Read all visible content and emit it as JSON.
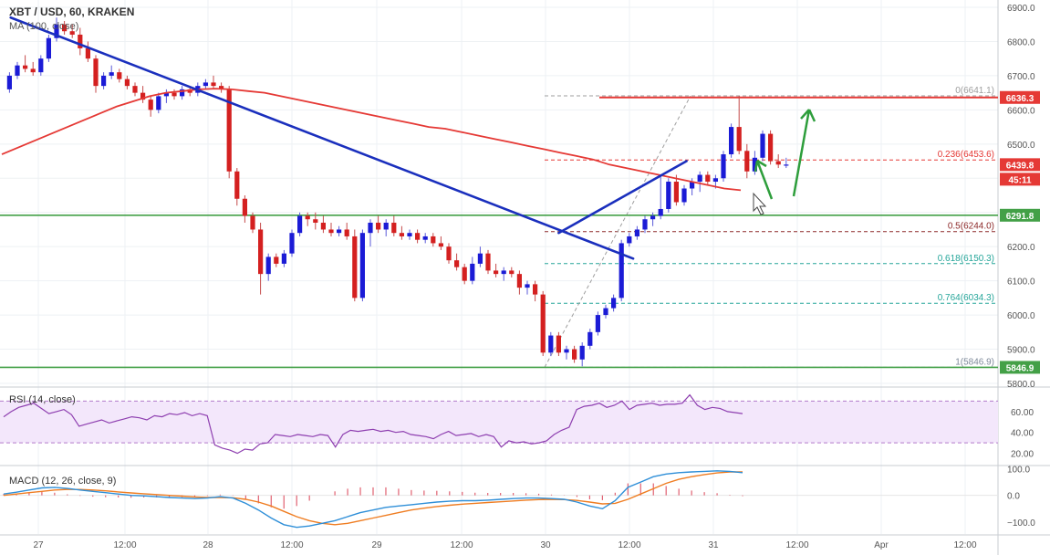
{
  "chart_data": {
    "type": "candlestick",
    "title": "XBT / USD, 60, KRAKEN",
    "ma_label": "MA (100, close)",
    "price_axis": {
      "ticks": [
        "6900.0",
        "6800.0",
        "6700.0",
        "6600.0",
        "6500.0",
        "6400.0",
        "6300.0",
        "6200.0",
        "6100.0",
        "6000.0",
        "5900.0",
        "5800.0"
      ],
      "range": [
        5800,
        6900
      ]
    },
    "time_axis": {
      "labels": [
        "27",
        "12:00",
        "28",
        "12:00",
        "29",
        "12:00",
        "30",
        "12:00",
        "31",
        "12:00",
        "Apr",
        "12:00"
      ]
    },
    "candles": [
      {
        "o": 6660,
        "h": 6710,
        "l": 6650,
        "c": 6700
      },
      {
        "o": 6700,
        "h": 6740,
        "l": 6690,
        "c": 6730
      },
      {
        "o": 6730,
        "h": 6760,
        "l": 6710,
        "c": 6720
      },
      {
        "o": 6720,
        "h": 6740,
        "l": 6700,
        "c": 6710
      },
      {
        "o": 6710,
        "h": 6760,
        "l": 6700,
        "c": 6750
      },
      {
        "o": 6750,
        "h": 6820,
        "l": 6740,
        "c": 6810
      },
      {
        "o": 6810,
        "h": 6870,
        "l": 6800,
        "c": 6850
      },
      {
        "o": 6850,
        "h": 6860,
        "l": 6820,
        "c": 6830
      },
      {
        "o": 6830,
        "h": 6850,
        "l": 6810,
        "c": 6820
      },
      {
        "o": 6820,
        "h": 6840,
        "l": 6760,
        "c": 6780
      },
      {
        "o": 6780,
        "h": 6800,
        "l": 6740,
        "c": 6750
      },
      {
        "o": 6750,
        "h": 6760,
        "l": 6650,
        "c": 6670
      },
      {
        "o": 6670,
        "h": 6710,
        "l": 6660,
        "c": 6700
      },
      {
        "o": 6700,
        "h": 6730,
        "l": 6690,
        "c": 6710
      },
      {
        "o": 6710,
        "h": 6720,
        "l": 6680,
        "c": 6690
      },
      {
        "o": 6690,
        "h": 6700,
        "l": 6660,
        "c": 6670
      },
      {
        "o": 6670,
        "h": 6680,
        "l": 6640,
        "c": 6650
      },
      {
        "o": 6650,
        "h": 6670,
        "l": 6620,
        "c": 6630
      },
      {
        "o": 6630,
        "h": 6640,
        "l": 6580,
        "c": 6600
      },
      {
        "o": 6600,
        "h": 6650,
        "l": 6590,
        "c": 6640
      },
      {
        "o": 6640,
        "h": 6660,
        "l": 6620,
        "c": 6650
      },
      {
        "o": 6650,
        "h": 6660,
        "l": 6630,
        "c": 6640
      },
      {
        "o": 6640,
        "h": 6670,
        "l": 6630,
        "c": 6660
      },
      {
        "o": 6660,
        "h": 6670,
        "l": 6640,
        "c": 6650
      },
      {
        "o": 6650,
        "h": 6680,
        "l": 6640,
        "c": 6670
      },
      {
        "o": 6670,
        "h": 6690,
        "l": 6660,
        "c": 6680
      },
      {
        "o": 6680,
        "h": 6700,
        "l": 6660,
        "c": 6670
      },
      {
        "o": 6670,
        "h": 6680,
        "l": 6650,
        "c": 6660
      },
      {
        "o": 6660,
        "h": 6670,
        "l": 6400,
        "c": 6420
      },
      {
        "o": 6420,
        "h": 6430,
        "l": 6320,
        "c": 6340
      },
      {
        "o": 6340,
        "h": 6350,
        "l": 6270,
        "c": 6290
      },
      {
        "o": 6290,
        "h": 6300,
        "l": 6240,
        "c": 6250
      },
      {
        "o": 6250,
        "h": 6270,
        "l": 6060,
        "c": 6120
      },
      {
        "o": 6120,
        "h": 6180,
        "l": 6100,
        "c": 6170
      },
      {
        "o": 6170,
        "h": 6180,
        "l": 6140,
        "c": 6150
      },
      {
        "o": 6150,
        "h": 6190,
        "l": 6140,
        "c": 6180
      },
      {
        "o": 6180,
        "h": 6250,
        "l": 6170,
        "c": 6240
      },
      {
        "o": 6240,
        "h": 6300,
        "l": 6230,
        "c": 6290
      },
      {
        "o": 6290,
        "h": 6300,
        "l": 6260,
        "c": 6280
      },
      {
        "o": 6280,
        "h": 6300,
        "l": 6250,
        "c": 6270
      },
      {
        "o": 6270,
        "h": 6290,
        "l": 6240,
        "c": 6250
      },
      {
        "o": 6250,
        "h": 6270,
        "l": 6230,
        "c": 6240
      },
      {
        "o": 6240,
        "h": 6260,
        "l": 6230,
        "c": 6250
      },
      {
        "o": 6250,
        "h": 6270,
        "l": 6220,
        "c": 6230
      },
      {
        "o": 6230,
        "h": 6250,
        "l": 6040,
        "c": 6050
      },
      {
        "o": 6050,
        "h": 6250,
        "l": 6040,
        "c": 6240
      },
      {
        "o": 6240,
        "h": 6280,
        "l": 6200,
        "c": 6270
      },
      {
        "o": 6270,
        "h": 6290,
        "l": 6240,
        "c": 6250
      },
      {
        "o": 6250,
        "h": 6280,
        "l": 6230,
        "c": 6270
      },
      {
        "o": 6270,
        "h": 6290,
        "l": 6230,
        "c": 6240
      },
      {
        "o": 6240,
        "h": 6260,
        "l": 6220,
        "c": 6230
      },
      {
        "o": 6230,
        "h": 6250,
        "l": 6220,
        "c": 6240
      },
      {
        "o": 6240,
        "h": 6250,
        "l": 6210,
        "c": 6220
      },
      {
        "o": 6220,
        "h": 6240,
        "l": 6210,
        "c": 6230
      },
      {
        "o": 6230,
        "h": 6240,
        "l": 6200,
        "c": 6210
      },
      {
        "o": 6210,
        "h": 6230,
        "l": 6190,
        "c": 6200
      },
      {
        "o": 6200,
        "h": 6210,
        "l": 6150,
        "c": 6160
      },
      {
        "o": 6160,
        "h": 6180,
        "l": 6130,
        "c": 6140
      },
      {
        "o": 6140,
        "h": 6150,
        "l": 6090,
        "c": 6100
      },
      {
        "o": 6100,
        "h": 6170,
        "l": 6090,
        "c": 6150
      },
      {
        "o": 6150,
        "h": 6200,
        "l": 6140,
        "c": 6180
      },
      {
        "o": 6180,
        "h": 6190,
        "l": 6120,
        "c": 6130
      },
      {
        "o": 6130,
        "h": 6150,
        "l": 6110,
        "c": 6120
      },
      {
        "o": 6120,
        "h": 6140,
        "l": 6100,
        "c": 6130
      },
      {
        "o": 6130,
        "h": 6140,
        "l": 6110,
        "c": 6120
      },
      {
        "o": 6120,
        "h": 6130,
        "l": 6060,
        "c": 6080
      },
      {
        "o": 6080,
        "h": 6100,
        "l": 6060,
        "c": 6090
      },
      {
        "o": 6090,
        "h": 6100,
        "l": 6040,
        "c": 6060
      },
      {
        "o": 6060,
        "h": 6070,
        "l": 5880,
        "c": 5890
      },
      {
        "o": 5890,
        "h": 5950,
        "l": 5880,
        "c": 5940
      },
      {
        "o": 5940,
        "h": 5950,
        "l": 5880,
        "c": 5890
      },
      {
        "o": 5890,
        "h": 5910,
        "l": 5870,
        "c": 5900
      },
      {
        "o": 5900,
        "h": 5910,
        "l": 5860,
        "c": 5870
      },
      {
        "o": 5870,
        "h": 5920,
        "l": 5850,
        "c": 5910
      },
      {
        "o": 5910,
        "h": 5960,
        "l": 5900,
        "c": 5950
      },
      {
        "o": 5950,
        "h": 6010,
        "l": 5940,
        "c": 6000
      },
      {
        "o": 6000,
        "h": 6030,
        "l": 5990,
        "c": 6020
      },
      {
        "o": 6020,
        "h": 6060,
        "l": 6010,
        "c": 6050
      },
      {
        "o": 6050,
        "h": 6220,
        "l": 6040,
        "c": 6210
      },
      {
        "o": 6210,
        "h": 6240,
        "l": 6200,
        "c": 6230
      },
      {
        "o": 6230,
        "h": 6260,
        "l": 6220,
        "c": 6250
      },
      {
        "o": 6250,
        "h": 6290,
        "l": 6240,
        "c": 6280
      },
      {
        "o": 6280,
        "h": 6300,
        "l": 6260,
        "c": 6290
      },
      {
        "o": 6290,
        "h": 6410,
        "l": 6280,
        "c": 6310
      },
      {
        "o": 6310,
        "h": 6400,
        "l": 6300,
        "c": 6390
      },
      {
        "o": 6390,
        "h": 6410,
        "l": 6320,
        "c": 6330
      },
      {
        "o": 6330,
        "h": 6380,
        "l": 6320,
        "c": 6370
      },
      {
        "o": 6370,
        "h": 6400,
        "l": 6350,
        "c": 6390
      },
      {
        "o": 6390,
        "h": 6420,
        "l": 6360,
        "c": 6410
      },
      {
        "o": 6410,
        "h": 6420,
        "l": 6380,
        "c": 6390
      },
      {
        "o": 6390,
        "h": 6410,
        "l": 6370,
        "c": 6400
      },
      {
        "o": 6400,
        "h": 6480,
        "l": 6390,
        "c": 6470
      },
      {
        "o": 6470,
        "h": 6560,
        "l": 6460,
        "c": 6550
      },
      {
        "o": 6550,
        "h": 6641,
        "l": 6470,
        "c": 6480
      },
      {
        "o": 6480,
        "h": 6500,
        "l": 6400,
        "c": 6420
      },
      {
        "o": 6420,
        "h": 6480,
        "l": 6410,
        "c": 6460
      },
      {
        "o": 6460,
        "h": 6540,
        "l": 6450,
        "c": 6530
      },
      {
        "o": 6530,
        "h": 6540,
        "l": 6440,
        "c": 6450
      },
      {
        "o": 6450,
        "h": 6470,
        "l": 6430,
        "c": 6440
      },
      {
        "o": 6440,
        "h": 6460,
        "l": 6430,
        "c": 6440
      }
    ],
    "ma100": [
      6470,
      6490,
      6510,
      6530,
      6550,
      6570,
      6590,
      6610,
      6625,
      6640,
      6650,
      6655,
      6660,
      6662,
      6660,
      6655,
      6650,
      6640,
      6630,
      6620,
      6610,
      6600,
      6590,
      6580,
      6570,
      6560,
      6550,
      6545,
      6535,
      6525,
      6515,
      6505,
      6495,
      6485,
      6475,
      6465,
      6455,
      6440,
      6430,
      6420,
      6410,
      6400,
      6390,
      6380,
      6370,
      6365
    ],
    "ma_color": "#e53935",
    "trendlines": [
      {
        "name": "bearish-trend-line",
        "color": "#1a2fbd",
        "from": [
          0.15,
          6870
        ],
        "to": [
          79.5,
          6165
        ]
      },
      {
        "name": "bullish-trend-line",
        "color": "#1a2fbd",
        "from": [
          70,
          6240
        ],
        "to": [
          86.3,
          6450
        ]
      }
    ],
    "supports": [
      {
        "value": 6291.8,
        "label": "6291.8",
        "color": "#43a047"
      },
      {
        "value": 5846.9,
        "label": "5846.9",
        "color": "#43a047"
      }
    ],
    "resistance": {
      "value": 6636.3,
      "label": "6636.3",
      "color": "#e53935"
    },
    "current": {
      "label": "6439.8",
      "timer": "45:11",
      "value": 6439.8
    },
    "fib_levels": [
      {
        "label": "0(6641.1)",
        "value": 6641.1,
        "color": "#9e9e9e"
      },
      {
        "label": "0.236(6453.6)",
        "value": 6453.6,
        "color": "#e53935"
      },
      {
        "label": "0.5(6244.0)",
        "value": 6244.0,
        "color": "#8d2a2a"
      },
      {
        "label": "0.618(6150.3)",
        "value": 6150.3,
        "color": "#26a69a"
      },
      {
        "label": "0.764(6034.3)",
        "value": 6034.3,
        "color": "#26a69a"
      },
      {
        "label": "1(5846.9)",
        "value": 5846.9,
        "color": "#7e8a9a"
      }
    ],
    "rsi": {
      "label": "RSI (14, close)",
      "ticks": [
        "60.00",
        "40.00",
        "20.00"
      ],
      "range": [
        10,
        80
      ],
      "band": [
        30,
        70
      ],
      "values": [
        55,
        60,
        64,
        66,
        68,
        63,
        58,
        60,
        62,
        57,
        46,
        48,
        50,
        52,
        49,
        51,
        53,
        55,
        54,
        52,
        56,
        55,
        58,
        57,
        59,
        56,
        58,
        56,
        28,
        25,
        23,
        20,
        24,
        23,
        29,
        30,
        38,
        37,
        36,
        38,
        37,
        36,
        38,
        37,
        26,
        38,
        42,
        41,
        42,
        43,
        41,
        42,
        40,
        41,
        38,
        37,
        36,
        34,
        38,
        41,
        37,
        38,
        39,
        36,
        38,
        36,
        26,
        32,
        30,
        31,
        29,
        30,
        32,
        38,
        42,
        45,
        62,
        65,
        66,
        68,
        64,
        66,
        70,
        62,
        66,
        67,
        68,
        66,
        67,
        67,
        68,
        76,
        66,
        62,
        64,
        63,
        60,
        59,
        58
      ]
    },
    "macd": {
      "label": "MACD (12, 26, close, 9)",
      "ticks": [
        "100.0",
        "0.0",
        "−100.0"
      ],
      "range": [
        -145,
        105
      ],
      "macd_color": "#2f8fd8",
      "signal_color": "#ef7d22",
      "hist_color": "#e06070",
      "macd": [
        5,
        12,
        20,
        28,
        30,
        26,
        20,
        15,
        10,
        5,
        0,
        -2,
        -5,
        -8,
        -10,
        -12,
        -10,
        -5,
        -10,
        -30,
        -55,
        -85,
        -110,
        -120,
        -115,
        -105,
        -95,
        -80,
        -65,
        -55,
        -45,
        -40,
        -35,
        -30,
        -25,
        -22,
        -20,
        -20,
        -18,
        -15,
        -12,
        -10,
        -10,
        -12,
        -15,
        -25,
        -40,
        -50,
        -20,
        30,
        50,
        70,
        80,
        85,
        88,
        90,
        92,
        90,
        85
      ],
      "signal": [
        0,
        5,
        10,
        15,
        20,
        22,
        22,
        20,
        17,
        13,
        9,
        6,
        3,
        0,
        -3,
        -6,
        -8,
        -8,
        -9,
        -15,
        -25,
        -40,
        -60,
        -80,
        -95,
        -105,
        -110,
        -105,
        -95,
        -85,
        -75,
        -65,
        -55,
        -48,
        -42,
        -37,
        -33,
        -30,
        -27,
        -24,
        -21,
        -18,
        -16,
        -15,
        -16,
        -19,
        -25,
        -32,
        -30,
        -15,
        5,
        25,
        45,
        60,
        70,
        78,
        84,
        88,
        88
      ]
    }
  }
}
